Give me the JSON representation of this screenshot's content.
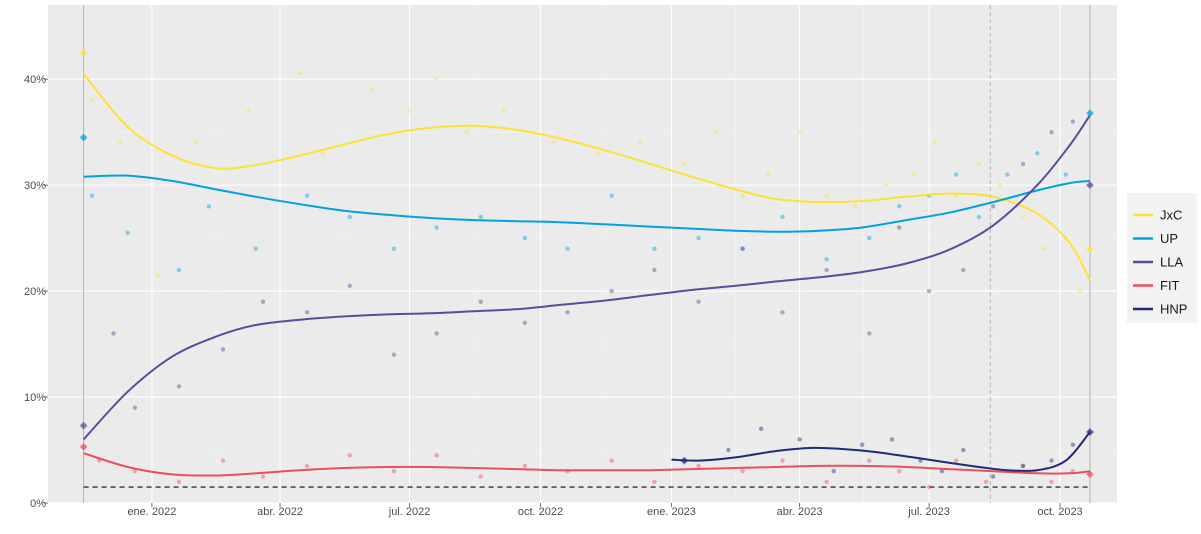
{
  "chart_data": {
    "type": "scatter",
    "title": "",
    "xlabel": "",
    "ylabel": "",
    "x_range": [
      "2021-10-20",
      "2023-11-10"
    ],
    "ylim": [
      0,
      47
    ],
    "y_ticks": [
      {
        "value": 0,
        "label": "0%"
      },
      {
        "value": 10,
        "label": "10%"
      },
      {
        "value": 20,
        "label": "20%"
      },
      {
        "value": 30,
        "label": "30%"
      },
      {
        "value": 40,
        "label": "40%"
      }
    ],
    "x_ticks": [
      {
        "date": "2022-01-01",
        "label": "ene. 2022"
      },
      {
        "date": "2022-04-01",
        "label": "abr. 2022"
      },
      {
        "date": "2022-07-01",
        "label": "jul. 2022"
      },
      {
        "date": "2022-10-01",
        "label": "oct. 2022"
      },
      {
        "date": "2023-01-01",
        "label": "ene. 2023"
      },
      {
        "date": "2023-04-01",
        "label": "abr. 2023"
      },
      {
        "date": "2023-07-01",
        "label": "jul. 2023"
      },
      {
        "date": "2023-10-01",
        "label": "oct. 2023"
      }
    ],
    "threshold": {
      "value": 1.5,
      "style": "dashed",
      "color": "#333333"
    },
    "reference_dates": [
      {
        "date": "2021-11-14",
        "style": "solid"
      },
      {
        "date": "2023-08-13",
        "style": "dashed"
      },
      {
        "date": "2023-10-22",
        "style": "solid"
      }
    ],
    "grid": true,
    "legend_position": "right",
    "series": [
      {
        "name": "JxC",
        "color": "#FFE135",
        "trend": [
          [
            "2021-11-14",
            40.5
          ],
          [
            "2021-12-15",
            35.5
          ],
          [
            "2022-01-15",
            32.8
          ],
          [
            "2022-02-15",
            31.6
          ],
          [
            "2022-03-15",
            31.9
          ],
          [
            "2022-04-15",
            32.8
          ],
          [
            "2022-05-15",
            33.8
          ],
          [
            "2022-06-15",
            34.8
          ],
          [
            "2022-07-15",
            35.4
          ],
          [
            "2022-08-15",
            35.6
          ],
          [
            "2022-09-15",
            35.2
          ],
          [
            "2022-10-15",
            34.4
          ],
          [
            "2022-11-15",
            33.3
          ],
          [
            "2022-12-15",
            32.1
          ],
          [
            "2023-01-15",
            30.8
          ],
          [
            "2023-02-15",
            29.6
          ],
          [
            "2023-03-15",
            28.7
          ],
          [
            "2023-04-15",
            28.4
          ],
          [
            "2023-05-15",
            28.5
          ],
          [
            "2023-06-15",
            28.9
          ],
          [
            "2023-07-15",
            29.2
          ],
          [
            "2023-08-15",
            28.9
          ],
          [
            "2023-09-15",
            27.3
          ],
          [
            "2023-10-08",
            24.5
          ],
          [
            "2023-10-22",
            21.0
          ]
        ],
        "polls": [
          [
            "2021-11-14",
            42.5
          ],
          [
            "2021-11-20",
            38
          ],
          [
            "2021-12-10",
            34
          ],
          [
            "2022-01-05",
            21.5
          ],
          [
            "2022-02-01",
            34
          ],
          [
            "2022-03-10",
            37
          ],
          [
            "2022-04-15",
            40.5
          ],
          [
            "2022-05-01",
            33
          ],
          [
            "2022-06-05",
            39
          ],
          [
            "2022-07-01",
            37
          ],
          [
            "2022-07-20",
            40
          ],
          [
            "2022-08-10",
            35
          ],
          [
            "2022-09-05",
            37
          ],
          [
            "2022-10-10",
            34
          ],
          [
            "2022-11-10",
            33
          ],
          [
            "2022-12-10",
            34
          ],
          [
            "2023-01-10",
            32
          ],
          [
            "2023-02-01",
            35
          ],
          [
            "2023-02-20",
            29
          ],
          [
            "2023-03-10",
            31
          ],
          [
            "2023-04-01",
            35
          ],
          [
            "2023-04-20",
            29
          ],
          [
            "2023-05-10",
            28
          ],
          [
            "2023-06-01",
            30
          ],
          [
            "2023-06-20",
            31
          ],
          [
            "2023-07-05",
            34
          ],
          [
            "2023-07-20",
            29
          ],
          [
            "2023-08-05",
            32
          ],
          [
            "2023-08-20",
            30
          ],
          [
            "2023-09-05",
            27
          ],
          [
            "2023-09-20",
            24
          ],
          [
            "2023-10-05",
            25
          ],
          [
            "2023-10-15",
            20
          ],
          [
            "2023-10-22",
            24
          ]
        ]
      },
      {
        "name": "UP",
        "color": "#00A3E0",
        "trend": [
          [
            "2021-11-14",
            30.8
          ],
          [
            "2021-12-15",
            30.9
          ],
          [
            "2022-01-15",
            30.4
          ],
          [
            "2022-02-15",
            29.6
          ],
          [
            "2022-03-15",
            28.9
          ],
          [
            "2022-04-15",
            28.2
          ],
          [
            "2022-05-15",
            27.6
          ],
          [
            "2022-06-15",
            27.2
          ],
          [
            "2022-07-15",
            26.9
          ],
          [
            "2022-08-15",
            26.7
          ],
          [
            "2022-09-15",
            26.6
          ],
          [
            "2022-10-15",
            26.5
          ],
          [
            "2022-11-15",
            26.3
          ],
          [
            "2022-12-15",
            26.1
          ],
          [
            "2023-01-15",
            25.9
          ],
          [
            "2023-02-15",
            25.7
          ],
          [
            "2023-03-15",
            25.6
          ],
          [
            "2023-04-15",
            25.7
          ],
          [
            "2023-05-15",
            26.0
          ],
          [
            "2023-06-15",
            26.7
          ],
          [
            "2023-07-15",
            27.4
          ],
          [
            "2023-08-15",
            28.4
          ],
          [
            "2023-09-15",
            29.5
          ],
          [
            "2023-10-08",
            30.2
          ],
          [
            "2023-10-22",
            30.4
          ]
        ],
        "polls": [
          [
            "2021-11-14",
            34.5
          ],
          [
            "2021-11-20",
            29
          ],
          [
            "2021-12-15",
            25.5
          ],
          [
            "2022-01-20",
            22
          ],
          [
            "2022-02-10",
            28
          ],
          [
            "2022-03-15",
            24
          ],
          [
            "2022-04-20",
            29
          ],
          [
            "2022-05-20",
            27
          ],
          [
            "2022-06-20",
            24
          ],
          [
            "2022-07-20",
            26
          ],
          [
            "2022-08-20",
            27
          ],
          [
            "2022-09-20",
            25
          ],
          [
            "2022-10-20",
            24
          ],
          [
            "2022-11-20",
            29
          ],
          [
            "2022-12-20",
            24
          ],
          [
            "2023-01-20",
            25
          ],
          [
            "2023-02-20",
            24
          ],
          [
            "2023-03-20",
            27
          ],
          [
            "2023-04-20",
            23
          ],
          [
            "2023-05-20",
            25
          ],
          [
            "2023-06-10",
            28
          ],
          [
            "2023-07-01",
            29
          ],
          [
            "2023-07-20",
            31
          ],
          [
            "2023-08-05",
            27
          ],
          [
            "2023-08-25",
            31
          ],
          [
            "2023-09-15",
            33
          ],
          [
            "2023-10-05",
            31
          ],
          [
            "2023-10-22",
            36.8
          ]
        ]
      },
      {
        "name": "LLA",
        "color": "#5B4B9A",
        "trend": [
          [
            "2021-11-14",
            6.0
          ],
          [
            "2021-12-15",
            10.5
          ],
          [
            "2022-01-15",
            13.8
          ],
          [
            "2022-02-15",
            15.7
          ],
          [
            "2022-03-15",
            16.8
          ],
          [
            "2022-04-15",
            17.3
          ],
          [
            "2022-05-15",
            17.6
          ],
          [
            "2022-06-15",
            17.8
          ],
          [
            "2022-07-15",
            17.9
          ],
          [
            "2022-08-15",
            18.1
          ],
          [
            "2022-09-15",
            18.3
          ],
          [
            "2022-10-15",
            18.7
          ],
          [
            "2022-11-15",
            19.1
          ],
          [
            "2022-12-15",
            19.6
          ],
          [
            "2023-01-15",
            20.1
          ],
          [
            "2023-02-15",
            20.5
          ],
          [
            "2023-03-15",
            20.9
          ],
          [
            "2023-04-15",
            21.3
          ],
          [
            "2023-05-15",
            21.8
          ],
          [
            "2023-06-15",
            22.6
          ],
          [
            "2023-07-15",
            23.9
          ],
          [
            "2023-08-15",
            26.2
          ],
          [
            "2023-09-15",
            30.0
          ],
          [
            "2023-10-08",
            33.8
          ],
          [
            "2023-10-22",
            36.6
          ]
        ],
        "polls": [
          [
            "2021-11-14",
            7.3
          ],
          [
            "2021-12-05",
            16
          ],
          [
            "2021-12-20",
            9
          ],
          [
            "2022-01-20",
            11
          ],
          [
            "2022-02-20",
            14.5
          ],
          [
            "2022-03-20",
            19
          ],
          [
            "2022-04-20",
            18
          ],
          [
            "2022-05-20",
            20.5
          ],
          [
            "2022-06-20",
            14
          ],
          [
            "2022-07-20",
            16
          ],
          [
            "2022-08-20",
            19
          ],
          [
            "2022-09-20",
            17
          ],
          [
            "2022-10-20",
            18
          ],
          [
            "2022-11-20",
            20
          ],
          [
            "2022-12-20",
            22
          ],
          [
            "2023-01-20",
            19
          ],
          [
            "2023-02-20",
            24
          ],
          [
            "2023-03-20",
            18
          ],
          [
            "2023-04-20",
            22
          ],
          [
            "2023-05-20",
            16
          ],
          [
            "2023-06-10",
            26
          ],
          [
            "2023-07-01",
            20
          ],
          [
            "2023-07-25",
            22
          ],
          [
            "2023-08-15",
            28
          ],
          [
            "2023-09-05",
            32
          ],
          [
            "2023-09-25",
            35
          ],
          [
            "2023-10-10",
            36
          ],
          [
            "2023-10-22",
            30
          ]
        ]
      },
      {
        "name": "FIT",
        "color": "#E8505B",
        "trend": [
          [
            "2021-11-14",
            4.7
          ],
          [
            "2021-12-15",
            3.4
          ],
          [
            "2022-01-15",
            2.7
          ],
          [
            "2022-02-15",
            2.6
          ],
          [
            "2022-03-15",
            2.8
          ],
          [
            "2022-04-15",
            3.1
          ],
          [
            "2022-05-15",
            3.3
          ],
          [
            "2022-06-15",
            3.4
          ],
          [
            "2022-07-15",
            3.4
          ],
          [
            "2022-08-15",
            3.3
          ],
          [
            "2022-09-15",
            3.2
          ],
          [
            "2022-10-15",
            3.1
          ],
          [
            "2022-11-15",
            3.1
          ],
          [
            "2022-12-15",
            3.1
          ],
          [
            "2023-01-15",
            3.2
          ],
          [
            "2023-02-15",
            3.3
          ],
          [
            "2023-03-15",
            3.4
          ],
          [
            "2023-04-15",
            3.5
          ],
          [
            "2023-05-15",
            3.5
          ],
          [
            "2023-06-15",
            3.4
          ],
          [
            "2023-07-15",
            3.2
          ],
          [
            "2023-08-15",
            3.0
          ],
          [
            "2023-09-15",
            2.8
          ],
          [
            "2023-10-08",
            2.8
          ],
          [
            "2023-10-22",
            3.0
          ]
        ],
        "polls": [
          [
            "2021-11-14",
            5.3
          ],
          [
            "2021-11-25",
            4
          ],
          [
            "2021-12-20",
            3
          ],
          [
            "2022-01-20",
            2
          ],
          [
            "2022-02-20",
            4
          ],
          [
            "2022-03-20",
            2.5
          ],
          [
            "2022-04-20",
            3.5
          ],
          [
            "2022-05-20",
            4.5
          ],
          [
            "2022-06-20",
            3
          ],
          [
            "2022-07-20",
            4.5
          ],
          [
            "2022-08-20",
            2.5
          ],
          [
            "2022-09-20",
            3.5
          ],
          [
            "2022-10-20",
            3
          ],
          [
            "2022-11-20",
            4
          ],
          [
            "2022-12-20",
            2
          ],
          [
            "2023-01-20",
            3.5
          ],
          [
            "2023-02-20",
            3
          ],
          [
            "2023-03-20",
            4
          ],
          [
            "2023-04-20",
            2
          ],
          [
            "2023-05-20",
            4
          ],
          [
            "2023-06-10",
            3
          ],
          [
            "2023-07-01",
            1.5
          ],
          [
            "2023-07-20",
            4
          ],
          [
            "2023-08-10",
            2
          ],
          [
            "2023-09-05",
            3.5
          ],
          [
            "2023-09-25",
            2
          ],
          [
            "2023-10-10",
            3
          ],
          [
            "2023-10-22",
            2.7
          ]
        ]
      },
      {
        "name": "HNP",
        "color": "#1F2A7A",
        "trend": [
          [
            "2023-01-01",
            4.1
          ],
          [
            "2023-01-20",
            4.0
          ],
          [
            "2023-02-15",
            4.3
          ],
          [
            "2023-03-15",
            4.9
          ],
          [
            "2023-04-10",
            5.2
          ],
          [
            "2023-05-01",
            5.1
          ],
          [
            "2023-05-25",
            4.8
          ],
          [
            "2023-06-20",
            4.3
          ],
          [
            "2023-07-15",
            3.8
          ],
          [
            "2023-08-05",
            3.4
          ],
          [
            "2023-08-25",
            3.1
          ],
          [
            "2023-09-15",
            3.1
          ],
          [
            "2023-10-05",
            4.0
          ],
          [
            "2023-10-22",
            6.7
          ]
        ],
        "polls": [
          [
            "2023-01-10",
            4
          ],
          [
            "2023-02-10",
            5
          ],
          [
            "2023-03-05",
            7
          ],
          [
            "2023-04-01",
            6
          ],
          [
            "2023-04-25",
            3
          ],
          [
            "2023-05-15",
            5.5
          ],
          [
            "2023-06-05",
            6
          ],
          [
            "2023-06-25",
            4
          ],
          [
            "2023-07-10",
            3
          ],
          [
            "2023-07-25",
            5
          ],
          [
            "2023-08-15",
            2.5
          ],
          [
            "2023-09-05",
            3.5
          ],
          [
            "2023-09-25",
            4
          ],
          [
            "2023-10-10",
            5.5
          ],
          [
            "2023-10-22",
            6.7
          ]
        ]
      }
    ]
  }
}
